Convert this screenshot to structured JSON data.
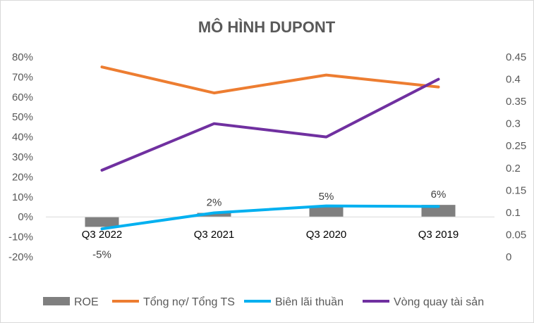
{
  "chart_data": {
    "type": "bar+line",
    "title": "MÔ HÌNH DUPONT",
    "categories": [
      "Q3 2022",
      "Q3 2021",
      "Q3 2020",
      "Q3 2019"
    ],
    "y_left": {
      "min": -0.2,
      "max": 0.8,
      "step": 0.1,
      "tick_labels": [
        "-20%",
        "-10%",
        "0%",
        "10%",
        "20%",
        "30%",
        "40%",
        "50%",
        "60%",
        "70%",
        "80%"
      ]
    },
    "y_right": {
      "min": 0,
      "max": 0.45,
      "step": 0.05,
      "tick_labels": [
        "0",
        "0.05",
        "0.1",
        "0.15",
        "0.2",
        "0.25",
        "0.3",
        "0.35",
        "0.4",
        "0.45"
      ]
    },
    "series": [
      {
        "name": "ROE",
        "kind": "bar",
        "axis": "left",
        "color": "#7f7f7f",
        "values": [
          -0.05,
          0.02,
          0.05,
          0.06
        ],
        "data_labels": [
          "-5%",
          "2%",
          "5%",
          "6%"
        ]
      },
      {
        "name": "Tổng nợ/ Tổng TS",
        "kind": "line",
        "axis": "left",
        "color": "#ed7d31",
        "values": [
          0.75,
          0.62,
          0.71,
          0.65
        ]
      },
      {
        "name": "Biên lãi thuần",
        "kind": "line",
        "axis": "left",
        "color": "#00b0f0",
        "values": [
          -0.06,
          0.02,
          0.055,
          0.052
        ]
      },
      {
        "name": "Vòng quay tài sản",
        "kind": "line",
        "axis": "right",
        "color": "#7030a0",
        "values": [
          0.195,
          0.3,
          0.27,
          0.4
        ]
      }
    ],
    "legend_position": "bottom",
    "grid": false
  }
}
